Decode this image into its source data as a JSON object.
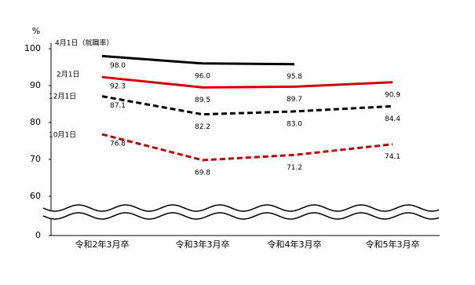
{
  "chart_data": {
    "type": "line",
    "y_label": "%",
    "categories": [
      "令和2年3月卒",
      "令和3年3月卒",
      "令和4年3月卒",
      "令和5年3月卒"
    ],
    "series": [
      {
        "name": "4月1日（就職率）",
        "color": "#000000",
        "dash": false,
        "values": [
          98.0,
          96.0,
          95.8,
          null
        ],
        "value_labels": [
          "98.0",
          "96.0",
          "95.8",
          null
        ]
      },
      {
        "name": "2月1日",
        "color": "#d00000",
        "dash": false,
        "values": [
          92.3,
          89.5,
          89.7,
          90.9
        ],
        "value_labels": [
          "92.3",
          "89.5",
          "89.7",
          "90.9"
        ]
      },
      {
        "name": "12月1日",
        "color": "#000000",
        "dash": true,
        "values": [
          87.1,
          82.2,
          83.0,
          84.4
        ],
        "value_labels": [
          "87.1",
          "82.2",
          "83.0",
          "84.4"
        ]
      },
      {
        "name": "10月1日",
        "color": "#c00000",
        "dash": true,
        "values": [
          76.8,
          69.8,
          71.2,
          74.1
        ],
        "value_labels": [
          "76.8",
          "69.8",
          "71.2",
          "74.1"
        ]
      }
    ],
    "ylim": [
      50,
      100
    ],
    "yticks": [
      0,
      60,
      70,
      80,
      90,
      100
    ],
    "axis_break": true
  }
}
